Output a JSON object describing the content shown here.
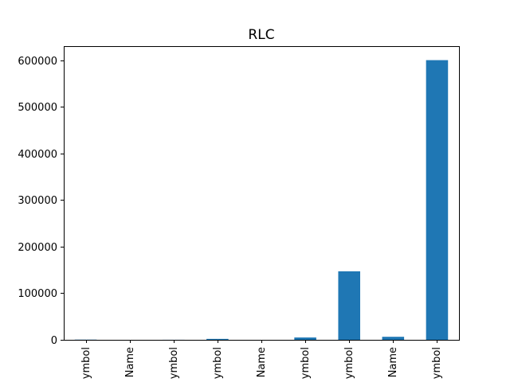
{
  "chart_data": {
    "type": "bar",
    "title": "RLC",
    "xlabel": "",
    "ylabel": "",
    "categories": [
      "ymbol",
      "Name",
      "ymbol",
      "ymbol",
      "Name",
      "ymbol",
      "ymbol",
      "Name",
      "ymbol"
    ],
    "values": [
      400,
      0,
      100,
      2000,
      0,
      5000,
      147000,
      6500,
      600000
    ],
    "ylim": [
      0,
      630000
    ],
    "yticks": [
      0,
      100000,
      200000,
      300000,
      400000,
      500000,
      600000
    ],
    "ytick_labels": [
      "0",
      "100000",
      "200000",
      "300000",
      "400000",
      "500000",
      "600000"
    ],
    "grid": false,
    "legend": "none",
    "bar_color": "#1f77b4"
  }
}
